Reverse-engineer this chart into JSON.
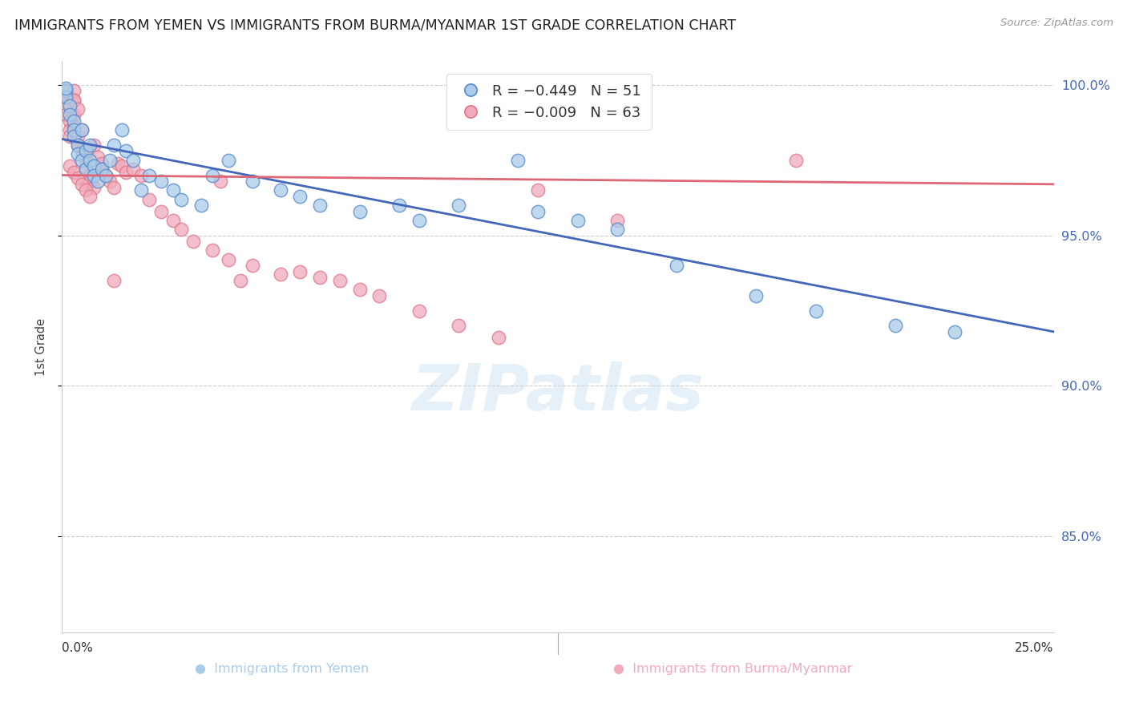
{
  "title": "IMMIGRANTS FROM YEMEN VS IMMIGRANTS FROM BURMA/MYANMAR 1ST GRADE CORRELATION CHART",
  "source": "Source: ZipAtlas.com",
  "ylabel": "1st Grade",
  "ytick_values": [
    0.85,
    0.9,
    0.95,
    1.0
  ],
  "ytick_labels": [
    "85.0%",
    "90.0%",
    "95.0%",
    "100.0%"
  ],
  "xlim": [
    0.0,
    0.25
  ],
  "ylim": [
    0.818,
    1.008
  ],
  "legend_blue_r": "R = −0.449",
  "legend_blue_n": "N = 51",
  "legend_pink_r": "R = −0.009",
  "legend_pink_n": "N = 63",
  "blue_fill": "#aacce8",
  "blue_edge": "#5588cc",
  "pink_fill": "#f0aabb",
  "pink_edge": "#dd7788",
  "trend_blue_color": "#4466bb",
  "trend_pink_color": "#dd6677",
  "watermark_text": "ZIPatlas",
  "blue_x": [
    0.001,
    0.001,
    0.002,
    0.002,
    0.003,
    0.003,
    0.003,
    0.004,
    0.004,
    0.005,
    0.005,
    0.006,
    0.006,
    0.007,
    0.007,
    0.008,
    0.008,
    0.009,
    0.01,
    0.011,
    0.012,
    0.013,
    0.015,
    0.016,
    0.018,
    0.02,
    0.022,
    0.025,
    0.028,
    0.03,
    0.035,
    0.038,
    0.042,
    0.048,
    0.055,
    0.06,
    0.065,
    0.075,
    0.085,
    0.09,
    0.1,
    0.115,
    0.12,
    0.13,
    0.14,
    0.155,
    0.175,
    0.19,
    0.21,
    0.225,
    0.001
  ],
  "blue_y": [
    0.998,
    0.996,
    0.993,
    0.99,
    0.988,
    0.985,
    0.983,
    0.98,
    0.977,
    0.975,
    0.985,
    0.978,
    0.972,
    0.98,
    0.975,
    0.973,
    0.97,
    0.968,
    0.972,
    0.97,
    0.975,
    0.98,
    0.985,
    0.978,
    0.975,
    0.965,
    0.97,
    0.968,
    0.965,
    0.962,
    0.96,
    0.97,
    0.975,
    0.968,
    0.965,
    0.963,
    0.96,
    0.958,
    0.96,
    0.955,
    0.96,
    0.975,
    0.958,
    0.955,
    0.952,
    0.94,
    0.93,
    0.925,
    0.92,
    0.918,
    0.999
  ],
  "pink_x": [
    0.001,
    0.001,
    0.001,
    0.001,
    0.002,
    0.002,
    0.002,
    0.003,
    0.003,
    0.003,
    0.003,
    0.004,
    0.004,
    0.005,
    0.005,
    0.006,
    0.006,
    0.007,
    0.007,
    0.008,
    0.008,
    0.009,
    0.01,
    0.01,
    0.011,
    0.012,
    0.013,
    0.014,
    0.015,
    0.016,
    0.018,
    0.02,
    0.022,
    0.025,
    0.028,
    0.03,
    0.033,
    0.038,
    0.042,
    0.048,
    0.055,
    0.06,
    0.065,
    0.07,
    0.075,
    0.08,
    0.09,
    0.1,
    0.11,
    0.12,
    0.002,
    0.003,
    0.004,
    0.005,
    0.006,
    0.007,
    0.14,
    0.04,
    0.045,
    0.185,
    0.003,
    0.004,
    0.013
  ],
  "pink_y": [
    0.998,
    0.996,
    0.993,
    0.99,
    0.988,
    0.985,
    0.983,
    0.998,
    0.995,
    0.99,
    0.986,
    0.983,
    0.98,
    0.985,
    0.978,
    0.975,
    0.972,
    0.97,
    0.968,
    0.966,
    0.98,
    0.976,
    0.974,
    0.972,
    0.97,
    0.968,
    0.966,
    0.974,
    0.973,
    0.971,
    0.972,
    0.97,
    0.962,
    0.958,
    0.955,
    0.952,
    0.948,
    0.945,
    0.942,
    0.94,
    0.937,
    0.938,
    0.936,
    0.935,
    0.932,
    0.93,
    0.925,
    0.92,
    0.916,
    0.965,
    0.973,
    0.971,
    0.969,
    0.967,
    0.965,
    0.963,
    0.955,
    0.968,
    0.935,
    0.975,
    0.995,
    0.992,
    0.935
  ],
  "blue_trend_x0": 0.0,
  "blue_trend_x1": 0.25,
  "blue_trend_y0": 0.982,
  "blue_trend_y1": 0.918,
  "pink_trend_x0": 0.0,
  "pink_trend_x1": 0.25,
  "pink_trend_y0": 0.97,
  "pink_trend_y1": 0.967
}
